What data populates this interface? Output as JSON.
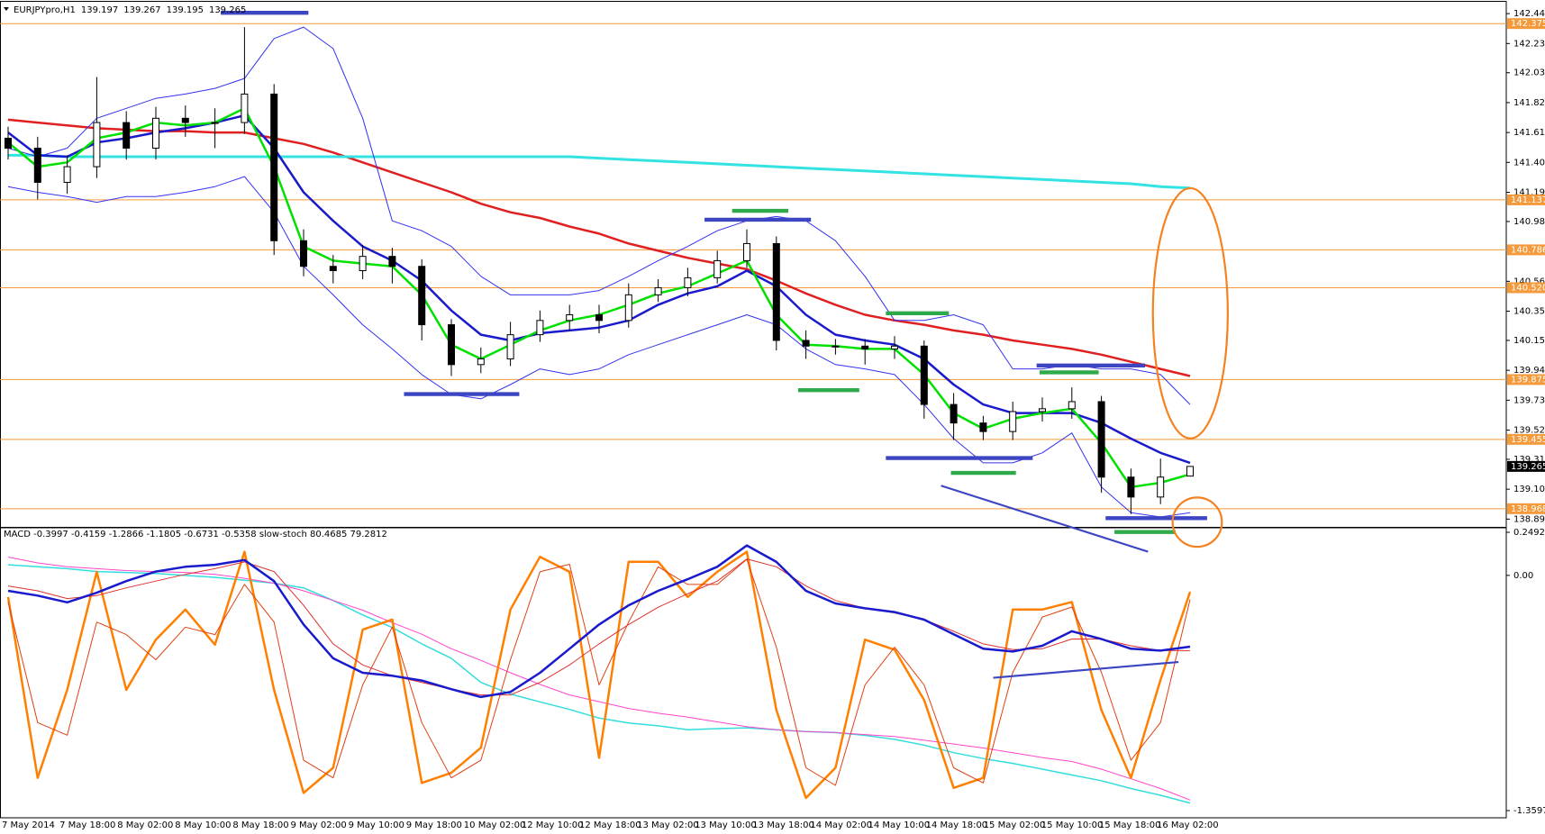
{
  "chart_data": [
    {
      "type": "candlestick",
      "title": "EURJPYpro,H1",
      "open": [
        141.57,
        141.5,
        141.26,
        141.37,
        141.68,
        141.5,
        141.71,
        141.68,
        141.68,
        141.88,
        140.85,
        140.67,
        140.64,
        140.74,
        140.67,
        140.26,
        139.98,
        140.02,
        140.19,
        140.29,
        140.33,
        140.29,
        140.47,
        140.52,
        140.59,
        140.71,
        140.83,
        140.15,
        140.11,
        140.11,
        140.09,
        140.11,
        139.7,
        139.57,
        139.51,
        139.65,
        139.67,
        139.72,
        139.19,
        139.05,
        139.197
      ],
      "high": [
        141.65,
        141.58,
        141.45,
        142.0,
        141.76,
        141.79,
        141.8,
        141.78,
        142.35,
        141.95,
        140.93,
        140.75,
        140.82,
        140.8,
        140.72,
        140.3,
        140.1,
        140.28,
        140.36,
        140.4,
        140.4,
        140.55,
        140.58,
        140.66,
        140.78,
        140.93,
        140.88,
        140.22,
        140.16,
        140.16,
        140.18,
        140.15,
        139.78,
        139.62,
        139.72,
        139.75,
        139.82,
        139.76,
        139.25,
        139.32,
        139.267
      ],
      "low": [
        141.42,
        141.14,
        141.18,
        141.29,
        141.42,
        141.42,
        141.58,
        141.5,
        141.6,
        140.75,
        140.6,
        140.55,
        140.58,
        140.55,
        140.15,
        139.9,
        139.92,
        139.97,
        140.14,
        140.22,
        140.2,
        140.24,
        140.42,
        140.46,
        140.55,
        140.66,
        140.08,
        140.02,
        140.05,
        139.98,
        140.02,
        139.6,
        139.45,
        139.45,
        139.45,
        139.58,
        139.6,
        139.08,
        138.93,
        139.0,
        139.195
      ],
      "close": [
        141.5,
        141.26,
        141.37,
        141.68,
        141.5,
        141.71,
        141.68,
        141.68,
        141.88,
        140.85,
        140.67,
        140.64,
        140.74,
        140.67,
        140.26,
        139.98,
        140.02,
        140.19,
        140.29,
        140.33,
        140.29,
        140.47,
        140.52,
        140.59,
        140.71,
        140.83,
        140.15,
        140.11,
        140.11,
        140.09,
        140.11,
        139.7,
        139.57,
        139.51,
        139.65,
        139.67,
        139.72,
        139.19,
        139.05,
        139.19,
        139.265
      ],
      "up_color": "#ffffff",
      "down_color": "#000000",
      "series": [
        {
          "color": "#e02020",
          "values": [
            141.7,
            141.68,
            141.66,
            141.64,
            141.63,
            141.62,
            141.62,
            141.61,
            141.61,
            141.57,
            141.53,
            141.47,
            141.4,
            141.33,
            141.26,
            141.19,
            141.11,
            141.05,
            141.01,
            140.95,
            140.9,
            140.83,
            140.78,
            140.73,
            140.69,
            140.65,
            140.57,
            140.48,
            140.4,
            140.33,
            140.29,
            140.26,
            140.22,
            140.19,
            140.15,
            140.12,
            140.09,
            140.05,
            140.0,
            139.95,
            139.9
          ]
        },
        {
          "color": "#33e3e3",
          "values": [
            141.45,
            141.45,
            141.44,
            141.44,
            141.44,
            141.44,
            141.44,
            141.44,
            141.44,
            141.44,
            141.44,
            141.44,
            141.44,
            141.44,
            141.44,
            141.44,
            141.44,
            141.44,
            141.44,
            141.44,
            141.43,
            141.42,
            141.41,
            141.4,
            141.39,
            141.38,
            141.37,
            141.36,
            141.35,
            141.34,
            141.33,
            141.32,
            141.31,
            141.3,
            141.29,
            141.28,
            141.27,
            141.26,
            141.25,
            141.23,
            141.22
          ]
        },
        {
          "color": "#3333ee",
          "values": [
            141.5,
            141.44,
            141.5,
            141.71,
            141.78,
            141.85,
            141.88,
            141.92,
            141.99,
            142.27,
            142.35,
            142.2,
            141.71,
            140.99,
            140.92,
            140.81,
            140.6,
            140.47,
            140.47,
            140.47,
            140.5,
            140.6,
            140.71,
            140.81,
            140.92,
            140.99,
            141.02,
            140.99,
            140.85,
            140.6,
            140.29,
            140.29,
            140.33,
            140.26,
            139.95,
            139.95,
            139.98,
            139.95,
            139.95,
            139.91,
            139.7
          ]
        },
        {
          "color": "#3333ee",
          "values": [
            141.23,
            141.19,
            141.16,
            141.12,
            141.16,
            141.16,
            141.19,
            141.23,
            141.3,
            141.05,
            140.67,
            140.47,
            140.26,
            140.09,
            139.91,
            139.77,
            139.74,
            139.84,
            139.95,
            139.91,
            139.95,
            140.05,
            140.12,
            140.19,
            140.26,
            140.33,
            140.26,
            140.09,
            139.98,
            139.95,
            139.91,
            139.7,
            139.46,
            139.29,
            139.29,
            139.36,
            139.5,
            139.12,
            138.94,
            138.91,
            138.94
          ]
        },
        {
          "color": "#1a1acd",
          "values": [
            141.61,
            141.45,
            141.44,
            141.54,
            141.57,
            141.61,
            141.64,
            141.68,
            141.73,
            141.5,
            141.19,
            140.99,
            140.81,
            140.71,
            140.57,
            140.36,
            140.19,
            140.15,
            140.2,
            140.22,
            140.24,
            140.29,
            140.4,
            140.48,
            140.53,
            140.64,
            140.53,
            140.33,
            140.19,
            140.15,
            140.12,
            140.02,
            139.84,
            139.7,
            139.64,
            139.64,
            139.64,
            139.57,
            139.46,
            139.36,
            139.29
          ]
        },
        {
          "color": "#00e000",
          "values": [
            141.54,
            141.37,
            141.4,
            141.57,
            141.61,
            141.68,
            141.66,
            141.68,
            141.78,
            141.37,
            140.81,
            140.71,
            140.69,
            140.67,
            140.47,
            140.12,
            140.02,
            140.12,
            140.22,
            140.29,
            140.33,
            140.4,
            140.48,
            140.53,
            140.62,
            140.71,
            140.33,
            140.12,
            140.11,
            140.09,
            140.09,
            139.91,
            139.64,
            139.53,
            139.6,
            139.64,
            139.67,
            139.43,
            139.12,
            139.15,
            139.21
          ]
        }
      ],
      "levels": [
        142.375,
        141.137,
        140.786,
        {
          "value": 140.52,
          "label": "140.520"
        },
        139.875,
        139.455,
        138.968
      ],
      "level_color": "#f59a3a",
      "ylim": [
        138.853,
        142.528
      ],
      "yticks": [
        142.445,
        142.235,
        {
          "value": 142.03,
          "label": "142.030"
        },
        {
          "value": 141.82,
          "label": "141.820"
        },
        {
          "value": 141.61,
          "label": "141.610"
        },
        {
          "value": 141.4,
          "label": "141.400"
        },
        {
          "value": 141.19,
          "label": "141.190"
        },
        140.985,
        140.565,
        140.355,
        {
          "value": 140.15,
          "label": "140.150"
        },
        {
          "value": 139.94,
          "label": "139.940"
        },
        {
          "value": 139.73,
          "label": "139.730"
        },
        {
          "value": 139.52,
          "label": "139.520"
        },
        139.315,
        139.105,
        138.895
      ]
    },
    {
      "type": "macd",
      "title": "MACD -0.3997 -0.4159 -1.2866 -1.1805 -0.6731 -0.5358 slow-stoch 80.4685 79.2812",
      "series": [
        {
          "color": "#33dddd",
          "values": [
            0.061,
            0.05,
            0.039,
            0.022,
            0.017,
            0.011,
            0.0,
            -0.011,
            -0.028,
            -0.045,
            -0.072,
            -0.145,
            -0.229,
            -0.301,
            -0.396,
            -0.479,
            -0.619,
            -0.686,
            -0.731,
            -0.775,
            -0.825,
            -0.853,
            -0.87,
            -0.892,
            -0.886,
            -0.881,
            -0.892,
            -0.903,
            -0.909,
            -0.925,
            -0.948,
            -0.981,
            -1.025,
            -1.059,
            -1.087,
            -1.12,
            -1.154,
            -1.187,
            -1.232,
            -1.271,
            -1.316
          ]
        },
        {
          "color": "#ff44cc",
          "values": [
            0.106,
            0.072,
            0.05,
            0.039,
            0.028,
            0.022,
            0.017,
            0.006,
            -0.017,
            -0.045,
            -0.089,
            -0.145,
            -0.201,
            -0.273,
            -0.34,
            -0.424,
            -0.491,
            -0.563,
            -0.63,
            -0.691,
            -0.73,
            -0.769,
            -0.797,
            -0.819,
            -0.847,
            -0.875,
            -0.892,
            -0.903,
            -0.909,
            -0.92,
            -0.931,
            -0.953,
            -0.975,
            -0.998,
            -1.025,
            -1.053,
            -1.076,
            -1.12,
            -1.176,
            -1.232,
            -1.299
          ]
        },
        {
          "color": "#ff8000",
          "axis": "y2",
          "values": [
            80,
            8,
            43,
            90,
            43,
            63,
            75,
            61,
            98,
            43,
            2,
            12,
            67,
            71,
            6,
            10,
            20,
            75,
            96,
            90,
            16,
            94,
            94,
            80,
            90,
            98,
            35,
            0,
            12,
            63,
            59,
            39,
            4,
            8,
            75,
            75,
            78,
            35,
            8,
            47,
            82
          ]
        },
        {
          "color": "#e04010",
          "axis": "y2",
          "values": [
            78,
            30,
            25,
            70,
            65,
            55,
            68,
            65,
            85,
            70,
            15,
            8,
            45,
            68,
            30,
            8,
            15,
            55,
            90,
            93,
            45,
            70,
            92,
            85,
            85,
            95,
            60,
            12,
            5,
            45,
            60,
            45,
            12,
            6,
            50,
            72,
            76,
            50,
            15,
            30,
            79
          ]
        },
        {
          "color": "#e03030",
          "values": [
            -0.061,
            -0.089,
            -0.134,
            -0.117,
            -0.072,
            -0.033,
            0.006,
            0.039,
            0.078,
            0.022,
            -0.173,
            -0.396,
            -0.518,
            -0.58,
            -0.619,
            -0.658,
            -0.691,
            -0.691,
            -0.619,
            -0.518,
            -0.396,
            -0.284,
            -0.184,
            -0.106,
            -0.033,
            0.095,
            0.05,
            -0.061,
            -0.145,
            -0.19,
            -0.217,
            -0.256,
            -0.323,
            -0.396,
            -0.429,
            -0.424,
            -0.368,
            -0.368,
            -0.407,
            -0.435,
            -0.435
          ]
        },
        {
          "color": "#1a1acd",
          "values": [
            -0.089,
            -0.117,
            -0.156,
            -0.1,
            -0.033,
            0.022,
            0.05,
            0.061,
            0.089,
            -0.033,
            -0.284,
            -0.479,
            -0.563,
            -0.58,
            -0.608,
            -0.658,
            -0.703,
            -0.674,
            -0.563,
            -0.424,
            -0.284,
            -0.173,
            -0.089,
            -0.022,
            0.05,
            0.173,
            0.078,
            -0.089,
            -0.162,
            -0.19,
            -0.212,
            -0.256,
            -0.34,
            -0.424,
            -0.44,
            -0.407,
            -0.323,
            -0.368,
            -0.424,
            -0.435,
            -0.412
          ]
        }
      ],
      "ylim": [
        -1.3597,
        0.2492
      ],
      "yticks": [
        0.2492,
        {
          "value": 0,
          "label": "0.00"
        },
        -1.3597
      ],
      "y2lim": [
        0,
        100
      ],
      "xtick_labels": [
        "7 May 2014",
        "7 May 18:00",
        "8 May 02:00",
        "8 May 10:00",
        "8 May 18:00",
        "9 May 02:00",
        "9 May 10:00",
        "9 May 18:00",
        "10 May 02:00",
        "12 May 10:00",
        "12 May 18:00",
        "13 May 02:00",
        "13 May 10:00",
        "13 May 18:00",
        "14 May 02:00",
        "14 May 10:00",
        "14 May 18:00",
        "15 May 02:00",
        "15 May 10:00",
        "15 May 18:00",
        "16 May 02:00"
      ]
    }
  ]
}
